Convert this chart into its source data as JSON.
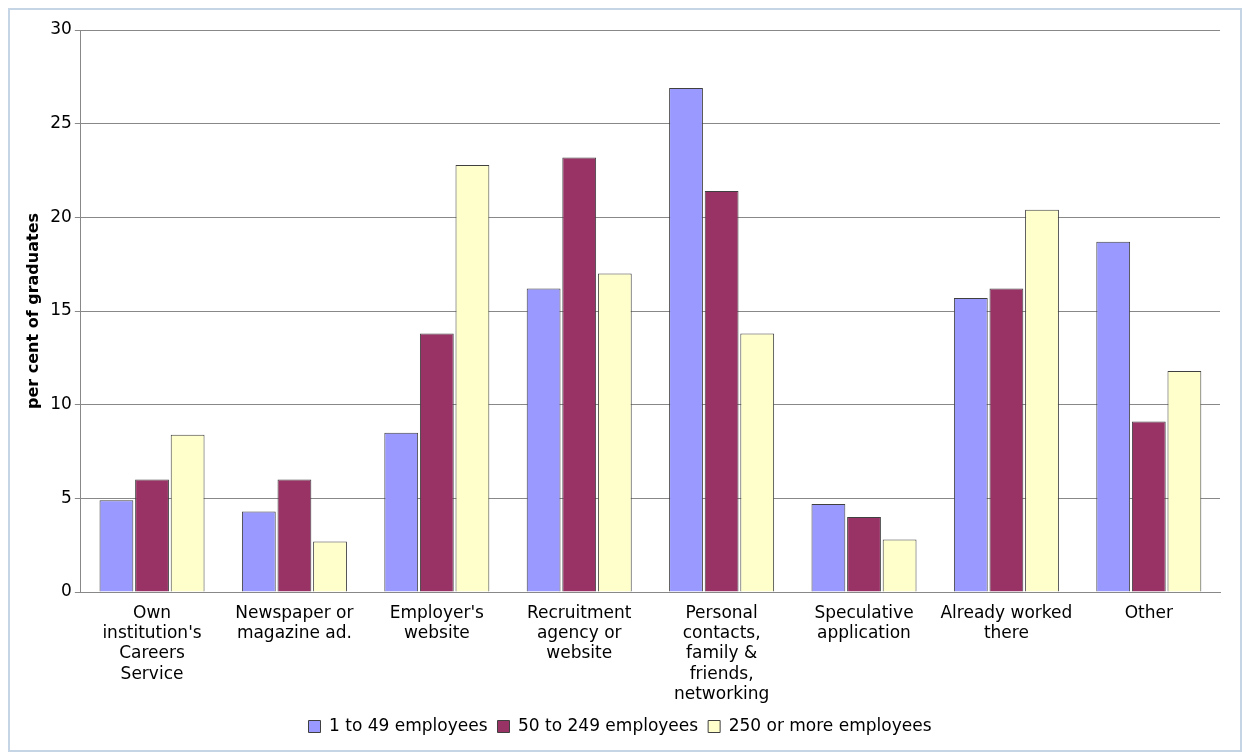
{
  "chart_data": {
    "type": "bar",
    "ylabel": "per cent of graduates",
    "categories": [
      "Own institution's Careers Service",
      "Newspaper or magazine ad.",
      "Employer's website",
      "Recruitment agency or website",
      "Personal contacts, family & friends, networking",
      "Speculative application",
      "Already worked there",
      "Other"
    ],
    "series": [
      {
        "name": "1 to 49 employees",
        "color": "#9999ff",
        "values": [
          4.9,
          4.3,
          8.5,
          16.2,
          26.9,
          4.7,
          15.7,
          18.7
        ]
      },
      {
        "name": "50 to 249 employees",
        "color": "#993366",
        "values": [
          6.0,
          6.0,
          13.8,
          23.2,
          21.4,
          4.0,
          16.2,
          9.1
        ]
      },
      {
        "name": "250 or more employees",
        "color": "#ffffcc",
        "values": [
          8.4,
          2.7,
          22.8,
          17.0,
          13.8,
          2.8,
          20.4,
          11.8
        ]
      }
    ],
    "ylim": [
      0,
      30
    ],
    "yticks": [
      0,
      5,
      10,
      15,
      20,
      25,
      30
    ],
    "grid": "y",
    "legend": "bottom"
  }
}
